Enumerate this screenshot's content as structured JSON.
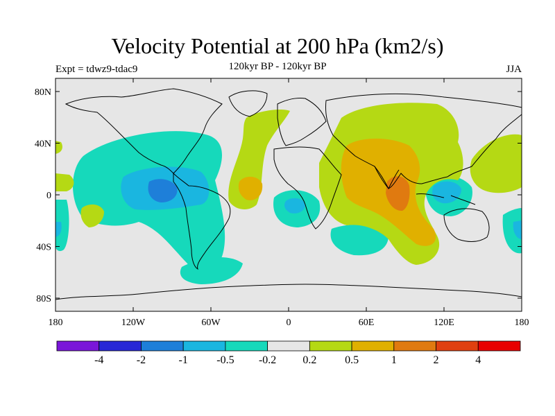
{
  "title": "Velocity Potential at 200 hPa (km2/s)",
  "subtitle": "120kyr BP - 120kyr BP",
  "experiment": "Expt = tdwz9-tdac9",
  "season": "JJA",
  "map": {
    "lat_ticks": [
      "80N",
      "40N",
      "0",
      "40S",
      "80S"
    ],
    "lon_ticks": [
      "180",
      "120W",
      "60W",
      "0",
      "60E",
      "120E",
      "180"
    ],
    "background_color": "#e6e6e6",
    "coast_color": "#000000"
  },
  "legend": {
    "colors": [
      "#7a16d9",
      "#2828d6",
      "#1e7fd9",
      "#1ab6e0",
      "#16d9bb",
      "#e6e6e6",
      "#b5d914",
      "#e0b000",
      "#e07a10",
      "#e04010",
      "#e80000"
    ],
    "labels": [
      "-4",
      "-2",
      "-1",
      "-0.5",
      "-0.2",
      "0.2",
      "0.5",
      "1",
      "2",
      "4"
    ]
  }
}
